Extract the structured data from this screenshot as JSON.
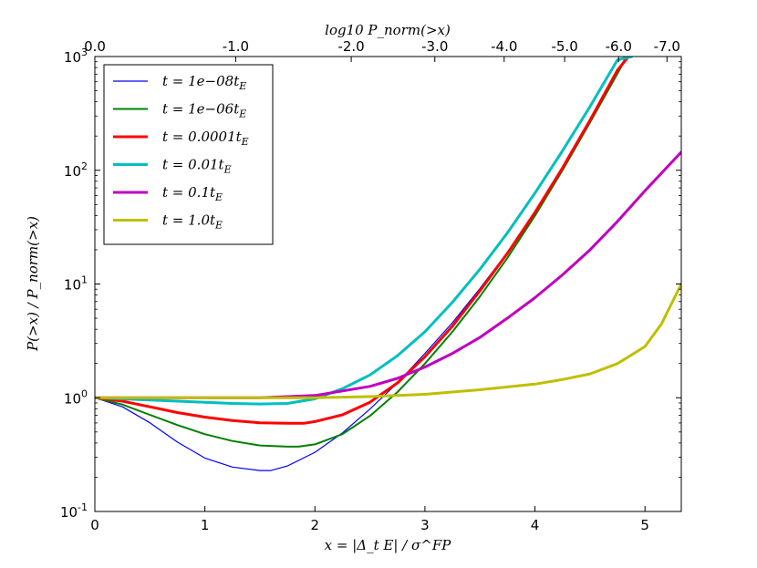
{
  "chart_data": {
    "type": "line",
    "xlabel": "x = |Δ_t E| / σ^FP",
    "ylabel": "P(>x) / P_norm(>x)",
    "top_label": "log10 P_norm(>x)",
    "xlim": [
      0,
      5.33
    ],
    "ylim_log10": [
      -1,
      3
    ],
    "y_scale": "log",
    "x_ticks": [
      {
        "value": 0,
        "label": "0"
      },
      {
        "value": 1,
        "label": "1"
      },
      {
        "value": 2,
        "label": "2"
      },
      {
        "value": 3,
        "label": "3"
      },
      {
        "value": 4,
        "label": "4"
      },
      {
        "value": 5,
        "label": "5"
      }
    ],
    "y_ticks": [
      {
        "exp": -1,
        "base": "10",
        "sup": "-1"
      },
      {
        "exp": 0,
        "base": "10",
        "sup": "0"
      },
      {
        "exp": 1,
        "base": "10",
        "sup": "1"
      },
      {
        "exp": 2,
        "base": "10",
        "sup": "2"
      },
      {
        "exp": 3,
        "base": "10",
        "sup": "3"
      }
    ],
    "top_ticks": [
      {
        "x": 0.0,
        "label": "0.0"
      },
      {
        "x": 1.28,
        "label": "-1.0"
      },
      {
        "x": 2.33,
        "label": "-2.0"
      },
      {
        "x": 3.09,
        "label": "-3.0"
      },
      {
        "x": 3.72,
        "label": "-4.0"
      },
      {
        "x": 4.27,
        "label": "-5.0"
      },
      {
        "x": 4.76,
        "label": "-6.0"
      },
      {
        "x": 5.2,
        "label": "-7.0"
      }
    ],
    "legend_location": "upper-left",
    "series": [
      {
        "name": "1e-08",
        "label_pre": "t = 1e−08t",
        "label_sub": "E",
        "color": "#0000ff",
        "width": "thin",
        "x": [
          0,
          0.25,
          0.5,
          0.75,
          1.0,
          1.25,
          1.5,
          1.6,
          1.75,
          2.0,
          2.25,
          2.5,
          2.75,
          3.0,
          3.25,
          3.5,
          3.75,
          4.0,
          4.25,
          4.5,
          4.75,
          4.83
        ],
        "log10_y": [
          0,
          -0.08,
          -0.22,
          -0.39,
          -0.53,
          -0.61,
          -0.64,
          -0.64,
          -0.6,
          -0.48,
          -0.31,
          -0.1,
          0.13,
          0.39,
          0.66,
          0.96,
          1.28,
          1.64,
          2.02,
          2.43,
          2.87,
          3.0
        ]
      },
      {
        "name": "1e-06",
        "label_pre": "t = 1e−06t",
        "label_sub": "E",
        "color": "#008000",
        "width": "medium",
        "x": [
          0,
          0.25,
          0.5,
          0.75,
          1.0,
          1.25,
          1.5,
          1.75,
          1.85,
          2.0,
          2.25,
          2.5,
          2.75,
          3.0,
          3.25,
          3.5,
          3.75,
          4.0,
          4.25,
          4.5,
          4.75,
          4.83
        ],
        "log10_y": [
          0,
          -0.06,
          -0.15,
          -0.24,
          -0.32,
          -0.38,
          -0.42,
          -0.43,
          -0.43,
          -0.41,
          -0.32,
          -0.16,
          0.05,
          0.3,
          0.58,
          0.89,
          1.23,
          1.6,
          2.0,
          2.42,
          2.85,
          2.99
        ]
      },
      {
        "name": "0.0001",
        "label_pre": "t = 0.0001t",
        "label_sub": "E",
        "color": "#ff0000",
        "width": "thick",
        "x": [
          0,
          0.25,
          0.5,
          0.75,
          1.0,
          1.25,
          1.5,
          1.75,
          1.9,
          2.0,
          2.25,
          2.5,
          2.75,
          3.0,
          3.25,
          3.5,
          3.75,
          4.0,
          4.25,
          4.5,
          4.75,
          4.85
        ],
        "log10_y": [
          0,
          -0.03,
          -0.08,
          -0.13,
          -0.17,
          -0.2,
          -0.22,
          -0.225,
          -0.225,
          -0.21,
          -0.15,
          -0.04,
          0.13,
          0.36,
          0.63,
          0.94,
          1.27,
          1.63,
          2.02,
          2.44,
          2.88,
          3.0
        ]
      },
      {
        "name": "0.01",
        "label_pre": "t = 0.01t",
        "label_sub": "E",
        "color": "#00bfbf",
        "width": "thick",
        "x": [
          0,
          0.25,
          0.5,
          0.75,
          1.0,
          1.25,
          1.5,
          1.75,
          2.0,
          2.25,
          2.5,
          2.75,
          3.0,
          3.25,
          3.5,
          3.75,
          4.0,
          4.25,
          4.5,
          4.75,
          4.88
        ],
        "log10_y": [
          0,
          -0.01,
          -0.02,
          -0.03,
          -0.04,
          -0.05,
          -0.055,
          -0.05,
          -0.01,
          0.08,
          0.2,
          0.37,
          0.58,
          0.84,
          1.13,
          1.45,
          1.8,
          2.17,
          2.56,
          2.97,
          3.0
        ]
      },
      {
        "name": "0.1",
        "label_pre": "t = 0.1t",
        "label_sub": "E",
        "color": "#bf00bf",
        "width": "thick",
        "x": [
          0,
          0.5,
          1.0,
          1.5,
          2.0,
          2.5,
          2.75,
          3.0,
          3.25,
          3.5,
          3.75,
          4.0,
          4.25,
          4.5,
          4.75,
          5.0,
          5.33
        ],
        "log10_y": [
          0,
          0,
          0,
          0,
          0.02,
          0.1,
          0.17,
          0.27,
          0.39,
          0.53,
          0.7,
          0.88,
          1.08,
          1.3,
          1.55,
          1.82,
          2.16
        ]
      },
      {
        "name": "1.0",
        "label_pre": "t = 1.0t",
        "label_sub": "E",
        "color": "#bfbf00",
        "width": "thick",
        "x": [
          0,
          0.5,
          1.0,
          1.5,
          2.0,
          2.5,
          3.0,
          3.5,
          4.0,
          4.25,
          4.5,
          4.75,
          5.0,
          5.15,
          5.33
        ],
        "log10_y": [
          0,
          0,
          0,
          0,
          0,
          0.01,
          0.03,
          0.07,
          0.12,
          0.16,
          0.21,
          0.3,
          0.45,
          0.65,
          1.0
        ]
      }
    ]
  }
}
